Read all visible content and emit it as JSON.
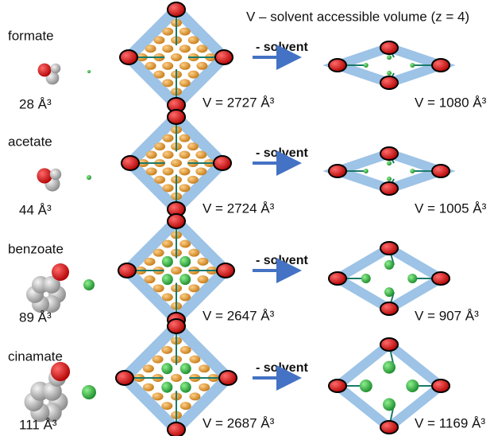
{
  "header": {
    "title": "V – solvent accessible volume (z = 4)"
  },
  "rows": [
    {
      "name": "formate",
      "anion_volume": "28 Å³",
      "arrow_label": "- solvent",
      "volume_before": "V = 2727 Å³",
      "volume_after": "V = 1080 Å³"
    },
    {
      "name": "acetate",
      "anion_volume": "44 Å³",
      "arrow_label": "- solvent",
      "volume_before": "V = 2724 Å³",
      "volume_after": "V = 1005 Å³"
    },
    {
      "name": "benzoate",
      "anion_volume": "89 Å³",
      "arrow_label": "- solvent",
      "volume_before": "V = 2647 Å³",
      "volume_after": "V = 907 Å³"
    },
    {
      "name": "cinamate",
      "anion_volume": "111 Å³",
      "arrow_label": "- solvent",
      "volume_before": "V = 2687 Å³",
      "volume_after": "V = 1169 Å³"
    }
  ]
}
